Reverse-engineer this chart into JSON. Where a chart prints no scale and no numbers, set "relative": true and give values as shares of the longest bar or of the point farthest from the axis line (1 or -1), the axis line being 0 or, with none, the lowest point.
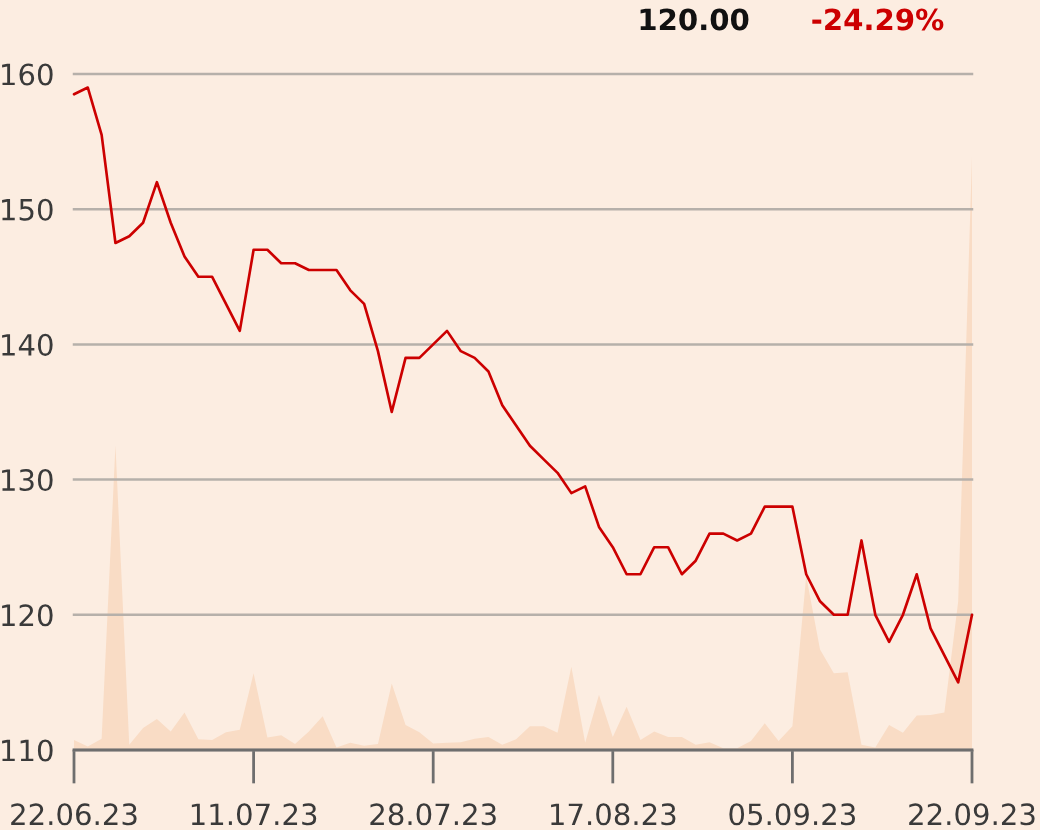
{
  "chart_data": [
    {
      "type": "line",
      "categories": [
        "22.06.23",
        null,
        null,
        null,
        null,
        null,
        null,
        null,
        null,
        null,
        null,
        null,
        null,
        "11.07.23",
        null,
        null,
        null,
        null,
        null,
        null,
        null,
        null,
        null,
        null,
        null,
        null,
        "28.07.23",
        null,
        null,
        null,
        null,
        null,
        null,
        null,
        null,
        null,
        null,
        null,
        null,
        "17.08.23",
        null,
        null,
        null,
        null,
        null,
        null,
        null,
        null,
        null,
        null,
        null,
        null,
        "05.09.23",
        null,
        null,
        null,
        null,
        null,
        null,
        null,
        null,
        null,
        null,
        null,
        null,
        "22.09.23"
      ],
      "values": [
        158.5,
        159,
        155.5,
        147.5,
        148,
        149,
        152,
        149,
        146.5,
        145,
        145,
        143,
        141,
        147,
        147,
        146,
        146,
        145.5,
        145.5,
        145.5,
        144,
        143,
        139.5,
        135,
        139,
        139,
        140,
        141,
        139.5,
        139,
        138,
        135.5,
        134,
        132.5,
        131.5,
        130.5,
        129,
        129.5,
        126.5,
        125,
        123,
        123,
        125,
        125,
        123,
        124,
        126,
        126,
        125.5,
        126,
        128,
        128,
        128,
        123,
        121,
        120,
        120,
        125.5,
        120,
        118,
        120,
        123,
        119,
        117,
        115,
        120
      ],
      "color": "#cc0000",
      "ylim": [
        110,
        160
      ],
      "yticks": [
        110,
        120,
        130,
        140,
        150,
        160
      ],
      "grid": "y",
      "annotations": [
        "120.00",
        "-24.29%"
      ]
    },
    {
      "type": "area",
      "relative": true,
      "tick_labels": false,
      "categories": [
        "22.06.23",
        null,
        null,
        null,
        null,
        null,
        null,
        null,
        null,
        null,
        null,
        null,
        null,
        "11.07.23",
        null,
        null,
        null,
        null,
        null,
        null,
        null,
        null,
        null,
        null,
        null,
        null,
        "28.07.23",
        null,
        null,
        null,
        null,
        null,
        null,
        null,
        null,
        null,
        null,
        null,
        null,
        "17.08.23",
        null,
        null,
        null,
        null,
        null,
        null,
        null,
        null,
        null,
        null,
        null,
        null,
        "05.09.23",
        null,
        null,
        null,
        null,
        null,
        null,
        null,
        null,
        null,
        null,
        null,
        null,
        "22.09.23"
      ],
      "values": [
        0.017,
        0.006,
        0.019,
        0.513,
        0.009,
        0.037,
        0.052,
        0.031,
        0.063,
        0.018,
        0.017,
        0.03,
        0.034,
        0.129,
        0.021,
        0.025,
        0.01,
        0.031,
        0.057,
        0.004,
        0.012,
        0.007,
        0.01,
        0.112,
        0.042,
        0.03,
        0.011,
        0.012,
        0.013,
        0.019,
        0.022,
        0.009,
        0.018,
        0.04,
        0.04,
        0.029,
        0.14,
        0.012,
        0.093,
        0.022,
        0.073,
        0.017,
        0.031,
        0.022,
        0.022,
        0.009,
        0.013,
        0.003,
        0.003,
        0.015,
        0.045,
        0.015,
        0.04,
        0.293,
        0.169,
        0.129,
        0.131,
        0.009,
        0.004,
        0.042,
        0.029,
        0.058,
        0.059,
        0.063,
        0.25,
        1
      ],
      "color": "#f9dcc5"
    }
  ]
}
